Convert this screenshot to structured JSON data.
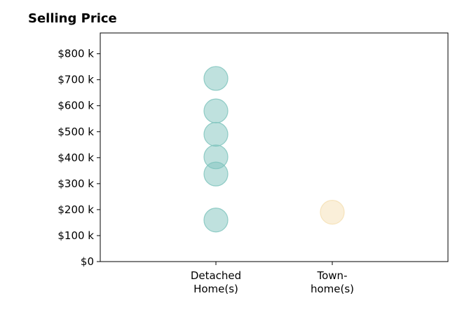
{
  "chart_data": {
    "type": "scatter",
    "title": "Selling Price",
    "xlabel": "",
    "ylabel": "",
    "categories": [
      [
        "Detached",
        "Home(s)"
      ],
      [
        "Town-",
        "home(s)"
      ]
    ],
    "ylim": [
      0,
      880
    ],
    "yticks": [
      0,
      100,
      200,
      300,
      400,
      500,
      600,
      700,
      800
    ],
    "ytick_labels": [
      "$0",
      "$100 k",
      "$200 k",
      "$300 k",
      "$400 k",
      "$500 k",
      "$600 k",
      "$700 k",
      "$800 k"
    ],
    "grid": false,
    "legend": "none",
    "series": [
      {
        "category_index": 0,
        "color": "#7fc4bd",
        "values": [
          705,
          580,
          490,
          403,
          337,
          160
        ]
      },
      {
        "category_index": 1,
        "color": "#f5dfb3",
        "values": [
          190
        ]
      }
    ]
  }
}
